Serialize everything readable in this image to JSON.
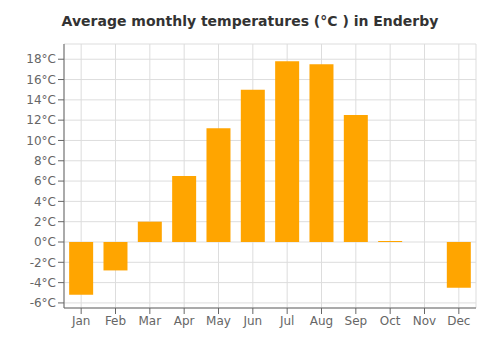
{
  "chart_data": {
    "type": "bar",
    "title": "Average monthly temperatures (°C ) in Enderby",
    "categories": [
      "Jan",
      "Feb",
      "Mar",
      "Apr",
      "May",
      "Jun",
      "Jul",
      "Aug",
      "Sep",
      "Oct",
      "Nov",
      "Dec"
    ],
    "values": [
      -5.2,
      -2.8,
      2.0,
      6.5,
      11.2,
      15.0,
      17.8,
      17.5,
      12.5,
      0.1,
      0.0,
      -4.5
    ],
    "color": "#FFA500",
    "ylim": [
      -6.5,
      19.5
    ],
    "yticks": [
      {
        "value": -6,
        "label": "-6°C"
      },
      {
        "value": -4,
        "label": "-4°C"
      },
      {
        "value": -2,
        "label": "-2°C"
      },
      {
        "value": 0,
        "label": "0°C"
      },
      {
        "value": 2,
        "label": "2°C"
      },
      {
        "value": 4,
        "label": "4°C"
      },
      {
        "value": 6,
        "label": "6°C"
      },
      {
        "value": 8,
        "label": "8°C"
      },
      {
        "value": 10,
        "label": "10°C"
      },
      {
        "value": 12,
        "label": "12°C"
      },
      {
        "value": 14,
        "label": "14°C"
      },
      {
        "value": 16,
        "label": "16°C"
      },
      {
        "value": 18,
        "label": "18°C"
      }
    ],
    "grid": true
  }
}
